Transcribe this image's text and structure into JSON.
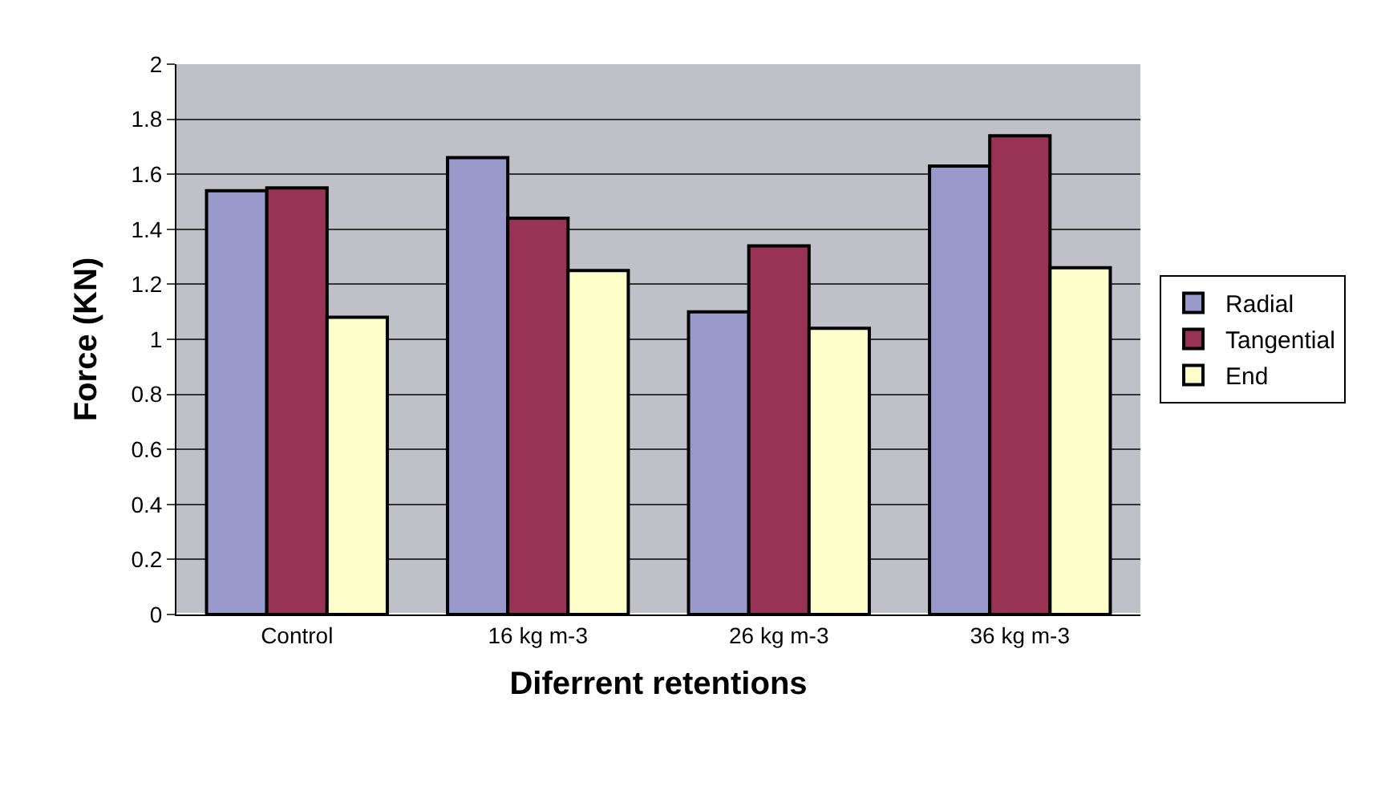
{
  "chart_data": {
    "type": "bar",
    "xlabel": "Diferrent retentions",
    "ylabel": "Force (KN)",
    "categories": [
      "Control",
      "16 kg m-3",
      "26 kg m-3",
      "36 kg m-3"
    ],
    "series": [
      {
        "name": "Radial",
        "color": "#9999cc",
        "values": [
          1.54,
          1.66,
          1.1,
          1.63
        ]
      },
      {
        "name": "Tangential",
        "color": "#993355",
        "values": [
          1.55,
          1.44,
          1.34,
          1.74
        ]
      },
      {
        "name": "End",
        "color": "#ffffcc",
        "values": [
          1.08,
          1.25,
          1.04,
          1.26
        ]
      }
    ],
    "ylim": [
      0,
      2
    ],
    "yticks": [
      0,
      0.2,
      0.4,
      0.6,
      0.8,
      1,
      1.2,
      1.4,
      1.6,
      1.8,
      2
    ],
    "grid": "y",
    "legend": "right"
  }
}
